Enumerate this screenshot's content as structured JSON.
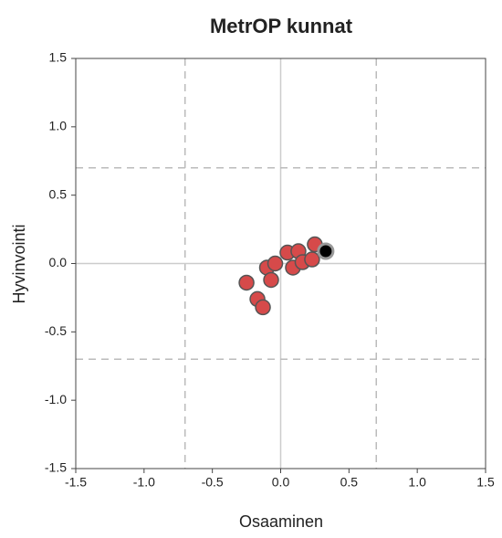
{
  "chart_data": {
    "type": "scatter",
    "title": "MetrOP kunnat",
    "xlabel": "Osaaminen",
    "ylabel": "Hyvinvointi",
    "xlim": [
      -1.5,
      1.5
    ],
    "ylim": [
      -1.5,
      1.5
    ],
    "xticks": [
      {
        "value": -1.5,
        "label": "-1.5"
      },
      {
        "value": -1,
        "label": "-1.0"
      },
      -0.5,
      {
        "value": 0,
        "label": "0.0"
      },
      0.5,
      {
        "value": 1,
        "label": "1.0"
      },
      1.5
    ],
    "yticks": [
      1.5,
      {
        "value": 1,
        "label": "1.0"
      },
      0.5,
      {
        "value": 0,
        "label": "0.0"
      },
      -0.5,
      {
        "value": -1,
        "label": "-1.0"
      },
      -1.5
    ],
    "xlines": [
      -0.7,
      0,
      0.7
    ],
    "ylines": [
      0.7,
      0,
      -0.7
    ],
    "series": [
      {
        "color": "#d64a4a",
        "x": [
          -0.25,
          -0.17,
          -0.13,
          -0.1,
          -0.07,
          -0.04,
          0.05,
          0.09,
          0.13,
          0.16,
          0.23,
          0.25
        ],
        "values": [
          -0.14,
          -0.26,
          -0.32,
          -0.03,
          -0.12,
          0.0,
          0.08,
          -0.03,
          0.09,
          0.01,
          0.03,
          0.14
        ]
      },
      {
        "color": "#000000",
        "x": [
          0.33
        ],
        "values": [
          0.09
        ]
      }
    ]
  }
}
